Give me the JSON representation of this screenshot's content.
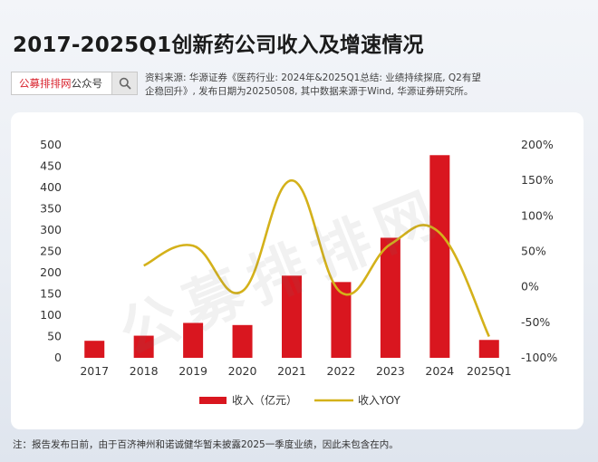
{
  "page_title": "2017-2025Q1创新药公司收入及增速情况",
  "search": {
    "brand": "公募排排网",
    "suffix": "公众号",
    "icon": "search-icon"
  },
  "source_text": "资料来源: 华源证券《医药行业: 2024年&2025Q1总结: 业绩持续探底, Q2有望企稳回升》, 发布日期为20250508, 其中数据来源于Wind, 华源证券研究所。",
  "watermark": "公募排排网",
  "footnote": "注：报告发布日前，由于百济神州和诺诚健华暂未披露2025一季度业绩，因此未包含在内。",
  "colors": {
    "bar": "#d9161f",
    "line": "#d4b11a",
    "text": "#333333"
  },
  "chart_data": {
    "type": "bar",
    "categories": [
      "2017",
      "2018",
      "2019",
      "2020",
      "2021",
      "2022",
      "2023",
      "2024",
      "2025Q1"
    ],
    "series": [
      {
        "name": "收入（亿元）",
        "type": "bar",
        "axis": "left",
        "values": [
          40,
          52,
          82,
          77,
          193,
          178,
          282,
          476,
          42
        ]
      },
      {
        "name": "收入YOY",
        "type": "line",
        "axis": "right",
        "x": [
          "2018",
          "2019",
          "2020",
          "2021",
          "2022",
          "2023",
          "2024",
          "2025Q1"
        ],
        "values": [
          30,
          58,
          -6,
          150,
          -8,
          60,
          76,
          -70
        ]
      }
    ],
    "y_left": {
      "ticks": [
        "0",
        "50",
        "100",
        "150",
        "200",
        "250",
        "300",
        "350",
        "400",
        "450",
        "500"
      ],
      "min": 0,
      "max": 500
    },
    "y_right": {
      "ticks": [
        "-100%",
        "-50%",
        "0%",
        "50%",
        "100%",
        "150%",
        "200%"
      ],
      "min": -100,
      "max": 200
    },
    "grid": false,
    "legend_position": "bottom"
  }
}
